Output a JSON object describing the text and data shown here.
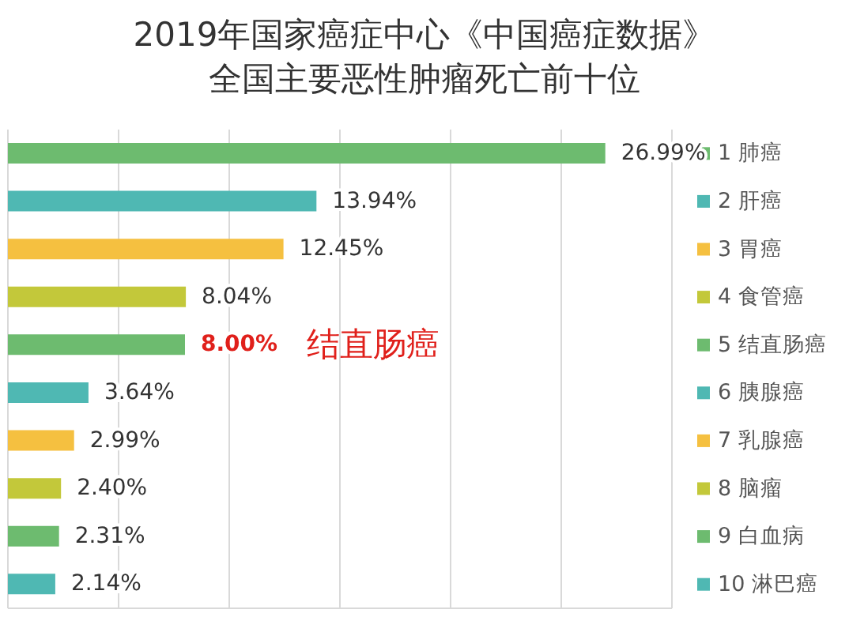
{
  "chart_data": {
    "type": "bar",
    "orientation": "horizontal",
    "title": "2019年国家癌症中心《中国癌症数据》",
    "subtitle": "全国主要恶性肿瘤死亡前十位",
    "categories": [
      "1 肺癌",
      "2 肝癌",
      "3 胃癌",
      "4 食管癌",
      "5 结直肠癌",
      "6 胰腺癌",
      "7 乳腺癌",
      "8 脑瘤",
      "9 白血病",
      "10 淋巴癌"
    ],
    "values": [
      26.99,
      13.94,
      12.45,
      8.04,
      8.0,
      3.64,
      2.99,
      2.4,
      2.31,
      2.14
    ],
    "value_labels": [
      "26.99%",
      "13.94%",
      "12.45%",
      "8.04%",
      "8.00%",
      "3.64%",
      "2.99%",
      "2.40%",
      "2.31%",
      "2.14%"
    ],
    "colors": [
      "#6dbb6f",
      "#4fb8b3",
      "#f5c040",
      "#c3c83a",
      "#6dbb6f",
      "#4fb8b3",
      "#f5c040",
      "#c3c83a",
      "#6dbb6f",
      "#4fb8b3"
    ],
    "xlim": [
      0,
      30
    ],
    "xticks": [
      {
        "value": 0,
        "label": null
      },
      {
        "value": 5,
        "label": null
      },
      {
        "value": 10,
        "label": null
      },
      {
        "value": 15,
        "label": null
      },
      {
        "value": 20,
        "label": null
      },
      {
        "value": 25,
        "label": null
      },
      {
        "value": 30,
        "label": null
      }
    ],
    "grid": "x",
    "tick_labels": "y",
    "annotations": [
      "结直肠癌"
    ]
  }
}
